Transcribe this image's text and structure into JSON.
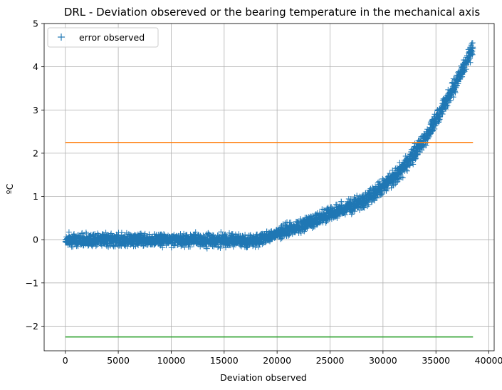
{
  "chart_data": {
    "type": "scatter",
    "title": "DRL - Deviation obsereved or the bearing temperature in the mechanical axis",
    "xlabel": "Deviation observed",
    "ylabel": "ºC",
    "xlim": [
      -2000,
      40500
    ],
    "ylim": [
      -2.57,
      5.0
    ],
    "xticks": [
      0,
      5000,
      10000,
      15000,
      20000,
      25000,
      30000,
      35000,
      40000
    ],
    "yticks": [
      -2,
      -1,
      0,
      1,
      2,
      3,
      4,
      5
    ],
    "ytick_labels": [
      "−2",
      "−1",
      "0",
      "1",
      "2",
      "3",
      "4",
      "5"
    ],
    "grid": true,
    "legend": {
      "position": "top-left",
      "entries": [
        "error observed"
      ]
    },
    "series": [
      {
        "name": "error observed",
        "marker": "+",
        "color": "#1f77b4",
        "n_points": 38500,
        "x_range": [
          0,
          38500
        ],
        "trend": [
          {
            "x": 0,
            "y": 0.0
          },
          {
            "x": 5000,
            "y": 0.0
          },
          {
            "x": 10000,
            "y": 0.0
          },
          {
            "x": 15000,
            "y": -0.02
          },
          {
            "x": 18000,
            "y": -0.02
          },
          {
            "x": 20000,
            "y": 0.15
          },
          {
            "x": 22000,
            "y": 0.3
          },
          {
            "x": 24000,
            "y": 0.5
          },
          {
            "x": 26000,
            "y": 0.68
          },
          {
            "x": 28000,
            "y": 0.88
          },
          {
            "x": 30000,
            "y": 1.2
          },
          {
            "x": 32000,
            "y": 1.68
          },
          {
            "x": 34000,
            "y": 2.35
          },
          {
            "x": 36000,
            "y": 3.2
          },
          {
            "x": 37500,
            "y": 3.9
          },
          {
            "x": 38500,
            "y": 4.45
          }
        ],
        "noise": 0.14
      },
      {
        "type": "line",
        "color": "#ff7f0e",
        "x": [
          0,
          38500
        ],
        "y": [
          2.25,
          2.25
        ]
      },
      {
        "type": "line",
        "color": "#2ca02c",
        "x": [
          0,
          38500
        ],
        "y": [
          -2.25,
          -2.25
        ]
      }
    ]
  }
}
